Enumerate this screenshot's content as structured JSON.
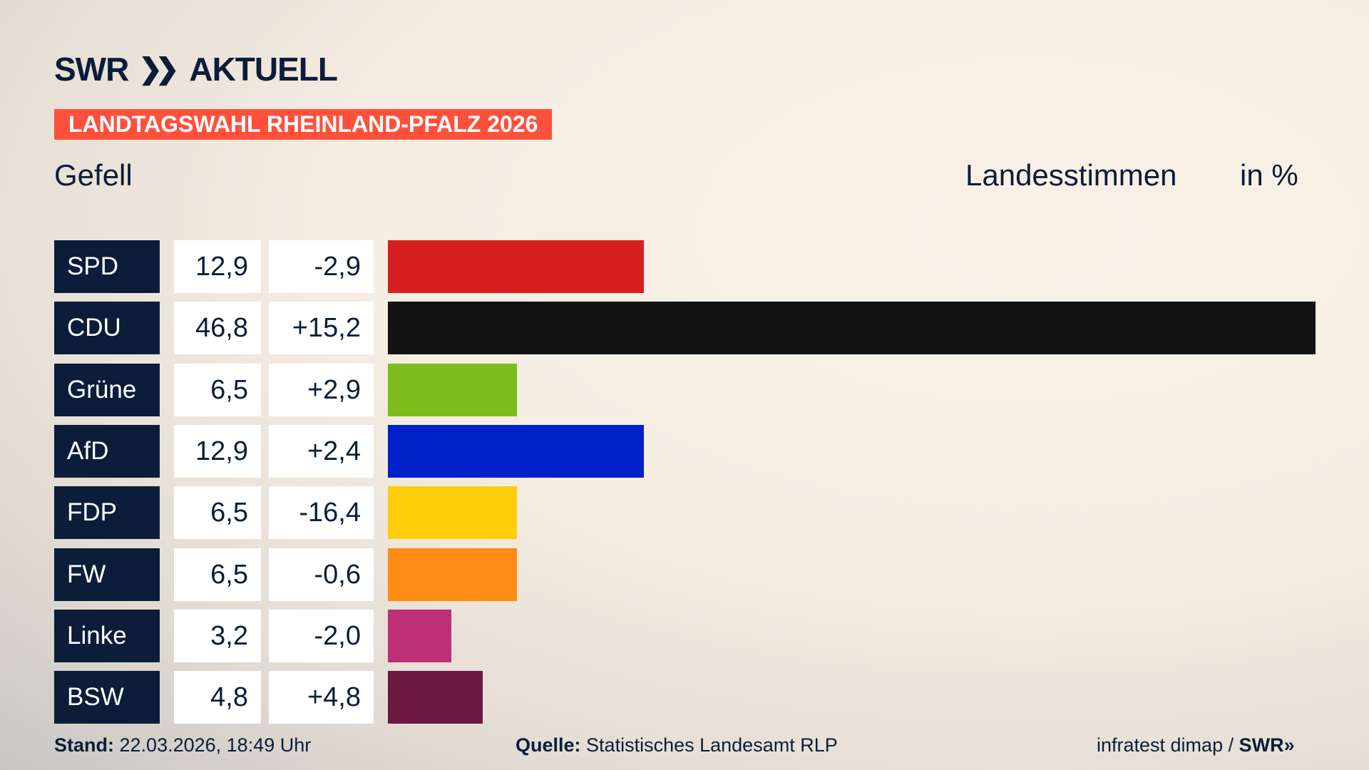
{
  "header": {
    "logo": "SWR",
    "logo_suffix": "AKTUELL",
    "banner": "LANDTAGSWAHL RHEINLAND-PFALZ 2026",
    "region": "Gefell",
    "measure": "Landesstimmen",
    "unit": "in %"
  },
  "chart_data": {
    "type": "bar",
    "orientation": "horizontal",
    "xlim": [
      0,
      46.8
    ],
    "categories": [
      "SPD",
      "CDU",
      "Grüne",
      "AfD",
      "FDP",
      "FW",
      "Linke",
      "BSW"
    ],
    "values": [
      12.9,
      46.8,
      6.5,
      12.9,
      6.5,
      6.5,
      3.2,
      4.8
    ],
    "value_labels": [
      "12,9",
      "46,8",
      "6,5",
      "12,9",
      "6,5",
      "6,5",
      "3,2",
      "4,8"
    ],
    "change_labels": [
      "-2,9",
      "+15,2",
      "+2,9",
      "+2,4",
      "-16,4",
      "-0,6",
      "-2,0",
      "+4,8"
    ],
    "colors": [
      "#d71f20",
      "#121212",
      "#7bbd1c",
      "#0021c8",
      "#ffcd0a",
      "#ff8c17",
      "#bd3075",
      "#6c1742"
    ]
  },
  "footer": {
    "stand_label": "Stand:",
    "stand": "22.03.2026, 18:49 Uhr",
    "source_label": "Quelle:",
    "source": "Statistisches Landesamt RLP",
    "credit": "infratest dimap / ",
    "credit_logo": "SWR"
  }
}
